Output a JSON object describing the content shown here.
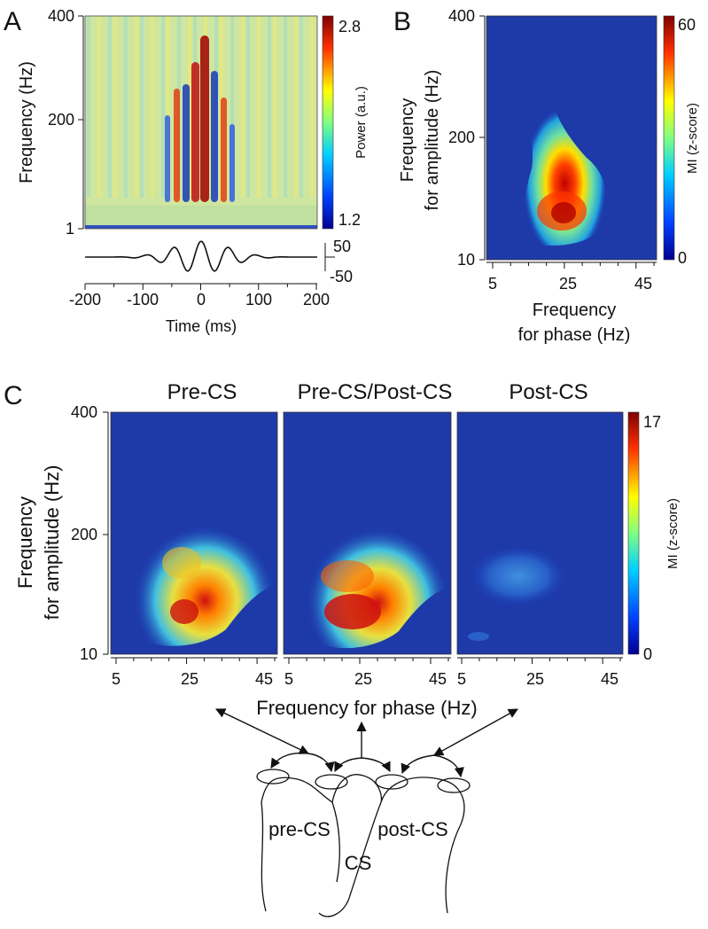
{
  "colors": {
    "jet_low": "#1f2a8c",
    "jet_mid": "#e8e060",
    "jet_high": "#a01010",
    "ink": "#111111",
    "bg": "#ffffff"
  },
  "chart_data": [
    {
      "panel_letter": "A",
      "type": "heatmap",
      "title": "",
      "xlabel": "Time (ms)",
      "ylabel": "Frequency (Hz)",
      "x_ticks": [
        "-200",
        "-100",
        "0",
        "100",
        "200"
      ],
      "y_ticks": [
        "400",
        "200",
        "1"
      ],
      "xlim": [
        -200,
        200
      ],
      "colorbar": {
        "label": "Power (a.u.)",
        "max_label": "2.8",
        "min_label": "1.2"
      },
      "inset_trace": {
        "scale_labels": [
          "50",
          "-50"
        ],
        "freq_bands": [],
        "description_values": []
      }
    },
    {
      "panel_letter": "B",
      "type": "heatmap",
      "xlabel_line1": "Frequency",
      "xlabel_line2": "for phase (Hz)",
      "ylabel_line1": "Frequency",
      "ylabel_line2": "for amplitude (Hz)",
      "x_ticks": [
        "5",
        "25",
        "45"
      ],
      "y_ticks": [
        "400",
        "200",
        "10"
      ],
      "xlim": [
        5,
        50
      ],
      "ylim": [
        10,
        400
      ],
      "colorbar": {
        "label": "MI (z-score)",
        "max_label": "60",
        "min_label": "0"
      },
      "peak": {
        "phase_hz": 25,
        "amplitude_hz": 130
      }
    },
    {
      "panel_letter": "C",
      "type": "heatmap",
      "subplots": [
        {
          "title": "Pre-CS",
          "x_ticks": [
            "5",
            "25",
            "45"
          ]
        },
        {
          "title": "Pre-CS/Post-CS",
          "x_ticks": [
            "5",
            "25",
            "45"
          ]
        },
        {
          "title": "Post-CS",
          "x_ticks": [
            "5",
            "25",
            "45"
          ]
        }
      ],
      "xlabel": "Frequency for phase (Hz)",
      "ylabel_line1": "Frequency",
      "ylabel_line2": "for amplitude (Hz)",
      "y_ticks": [
        "400",
        "200",
        "10"
      ],
      "colorbar": {
        "label": "MI (z-score)",
        "max_label": "17",
        "min_label": "0"
      }
    }
  ],
  "diagram": {
    "pre_label": "pre-CS",
    "post_label": "post-CS",
    "cs_label": "CS"
  }
}
